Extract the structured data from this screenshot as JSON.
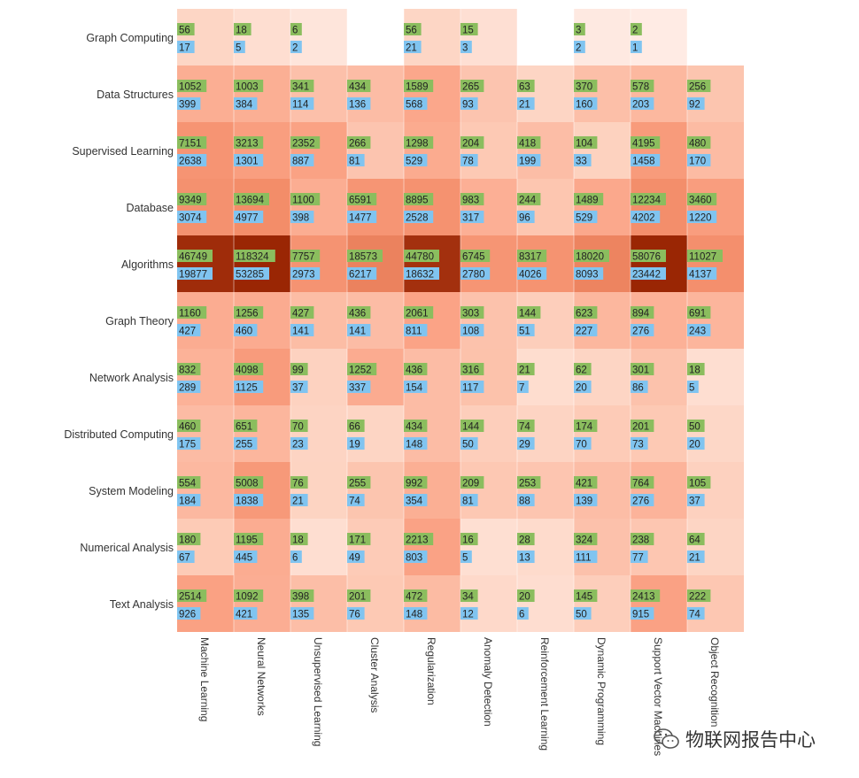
{
  "chart_data": {
    "type": "heatmap",
    "rows": [
      "Graph Computing",
      "Data Structures",
      "Supervised Learning",
      "Database",
      "Algorithms",
      "Graph Theory",
      "Network Analysis",
      "Distributed Computing",
      "System Modeling",
      "Numerical Analysis",
      "Text Analysis"
    ],
    "columns": [
      "Machine Learning",
      "Neural Networks",
      "Unsupervised Learning",
      "Cluster Analysis",
      "Regularization",
      "Anomaly Detection",
      "Reinforcement Learning",
      "Dynamic Programming",
      "Support Vector Machines",
      "Object Recognition"
    ],
    "values_top": [
      [
        56,
        18,
        6,
        null,
        56,
        15,
        null,
        3,
        2,
        null
      ],
      [
        1052,
        1003,
        341,
        434,
        1589,
        265,
        63,
        370,
        578,
        256
      ],
      [
        7151,
        3213,
        2352,
        266,
        1298,
        204,
        418,
        104,
        4195,
        480
      ],
      [
        9349,
        13694,
        1100,
        6591,
        8895,
        983,
        244,
        1489,
        12234,
        3460
      ],
      [
        46749,
        118324,
        7757,
        18573,
        44780,
        6745,
        8317,
        18020,
        58076,
        11027
      ],
      [
        1160,
        1256,
        427,
        436,
        2061,
        303,
        144,
        623,
        894,
        691
      ],
      [
        832,
        4098,
        99,
        1252,
        436,
        316,
        21,
        62,
        301,
        18
      ],
      [
        460,
        651,
        70,
        66,
        434,
        144,
        74,
        174,
        201,
        50
      ],
      [
        554,
        5008,
        76,
        255,
        992,
        209,
        253,
        421,
        764,
        105
      ],
      [
        180,
        1195,
        18,
        171,
        2213,
        16,
        28,
        324,
        238,
        64
      ],
      [
        2514,
        1092,
        398,
        201,
        472,
        34,
        20,
        145,
        2413,
        222
      ]
    ],
    "values_bottom": [
      [
        17,
        5,
        2,
        null,
        21,
        3,
        null,
        2,
        1,
        null
      ],
      [
        399,
        384,
        114,
        136,
        568,
        93,
        21,
        160,
        203,
        92
      ],
      [
        2638,
        1301,
        887,
        81,
        529,
        78,
        199,
        33,
        1458,
        170
      ],
      [
        3074,
        4977,
        398,
        1477,
        2528,
        317,
        96,
        529,
        4202,
        1220
      ],
      [
        19877,
        53285,
        2973,
        6217,
        18632,
        2780,
        4026,
        8093,
        23442,
        4137
      ],
      [
        427,
        460,
        141,
        141,
        811,
        108,
        51,
        227,
        276,
        243
      ],
      [
        289,
        1125,
        37,
        337,
        154,
        117,
        7,
        20,
        86,
        5
      ],
      [
        175,
        255,
        23,
        19,
        148,
        50,
        29,
        70,
        73,
        20
      ],
      [
        184,
        1838,
        21,
        74,
        354,
        81,
        88,
        139,
        276,
        37
      ],
      [
        67,
        445,
        6,
        49,
        803,
        5,
        13,
        111,
        77,
        21
      ],
      [
        926,
        421,
        135,
        76,
        148,
        12,
        6,
        50,
        915,
        74
      ]
    ],
    "colors": {
      "label_top_bg": "#8bbd5e",
      "label_bottom_bg": "#80c4f0",
      "scale": [
        "#fff3ef",
        "#fdd0bd",
        "#fba487",
        "#f28a66",
        "#9a2604"
      ]
    }
  },
  "watermark": {
    "icon": "wechat-icon",
    "text": "物联网报告中心"
  }
}
